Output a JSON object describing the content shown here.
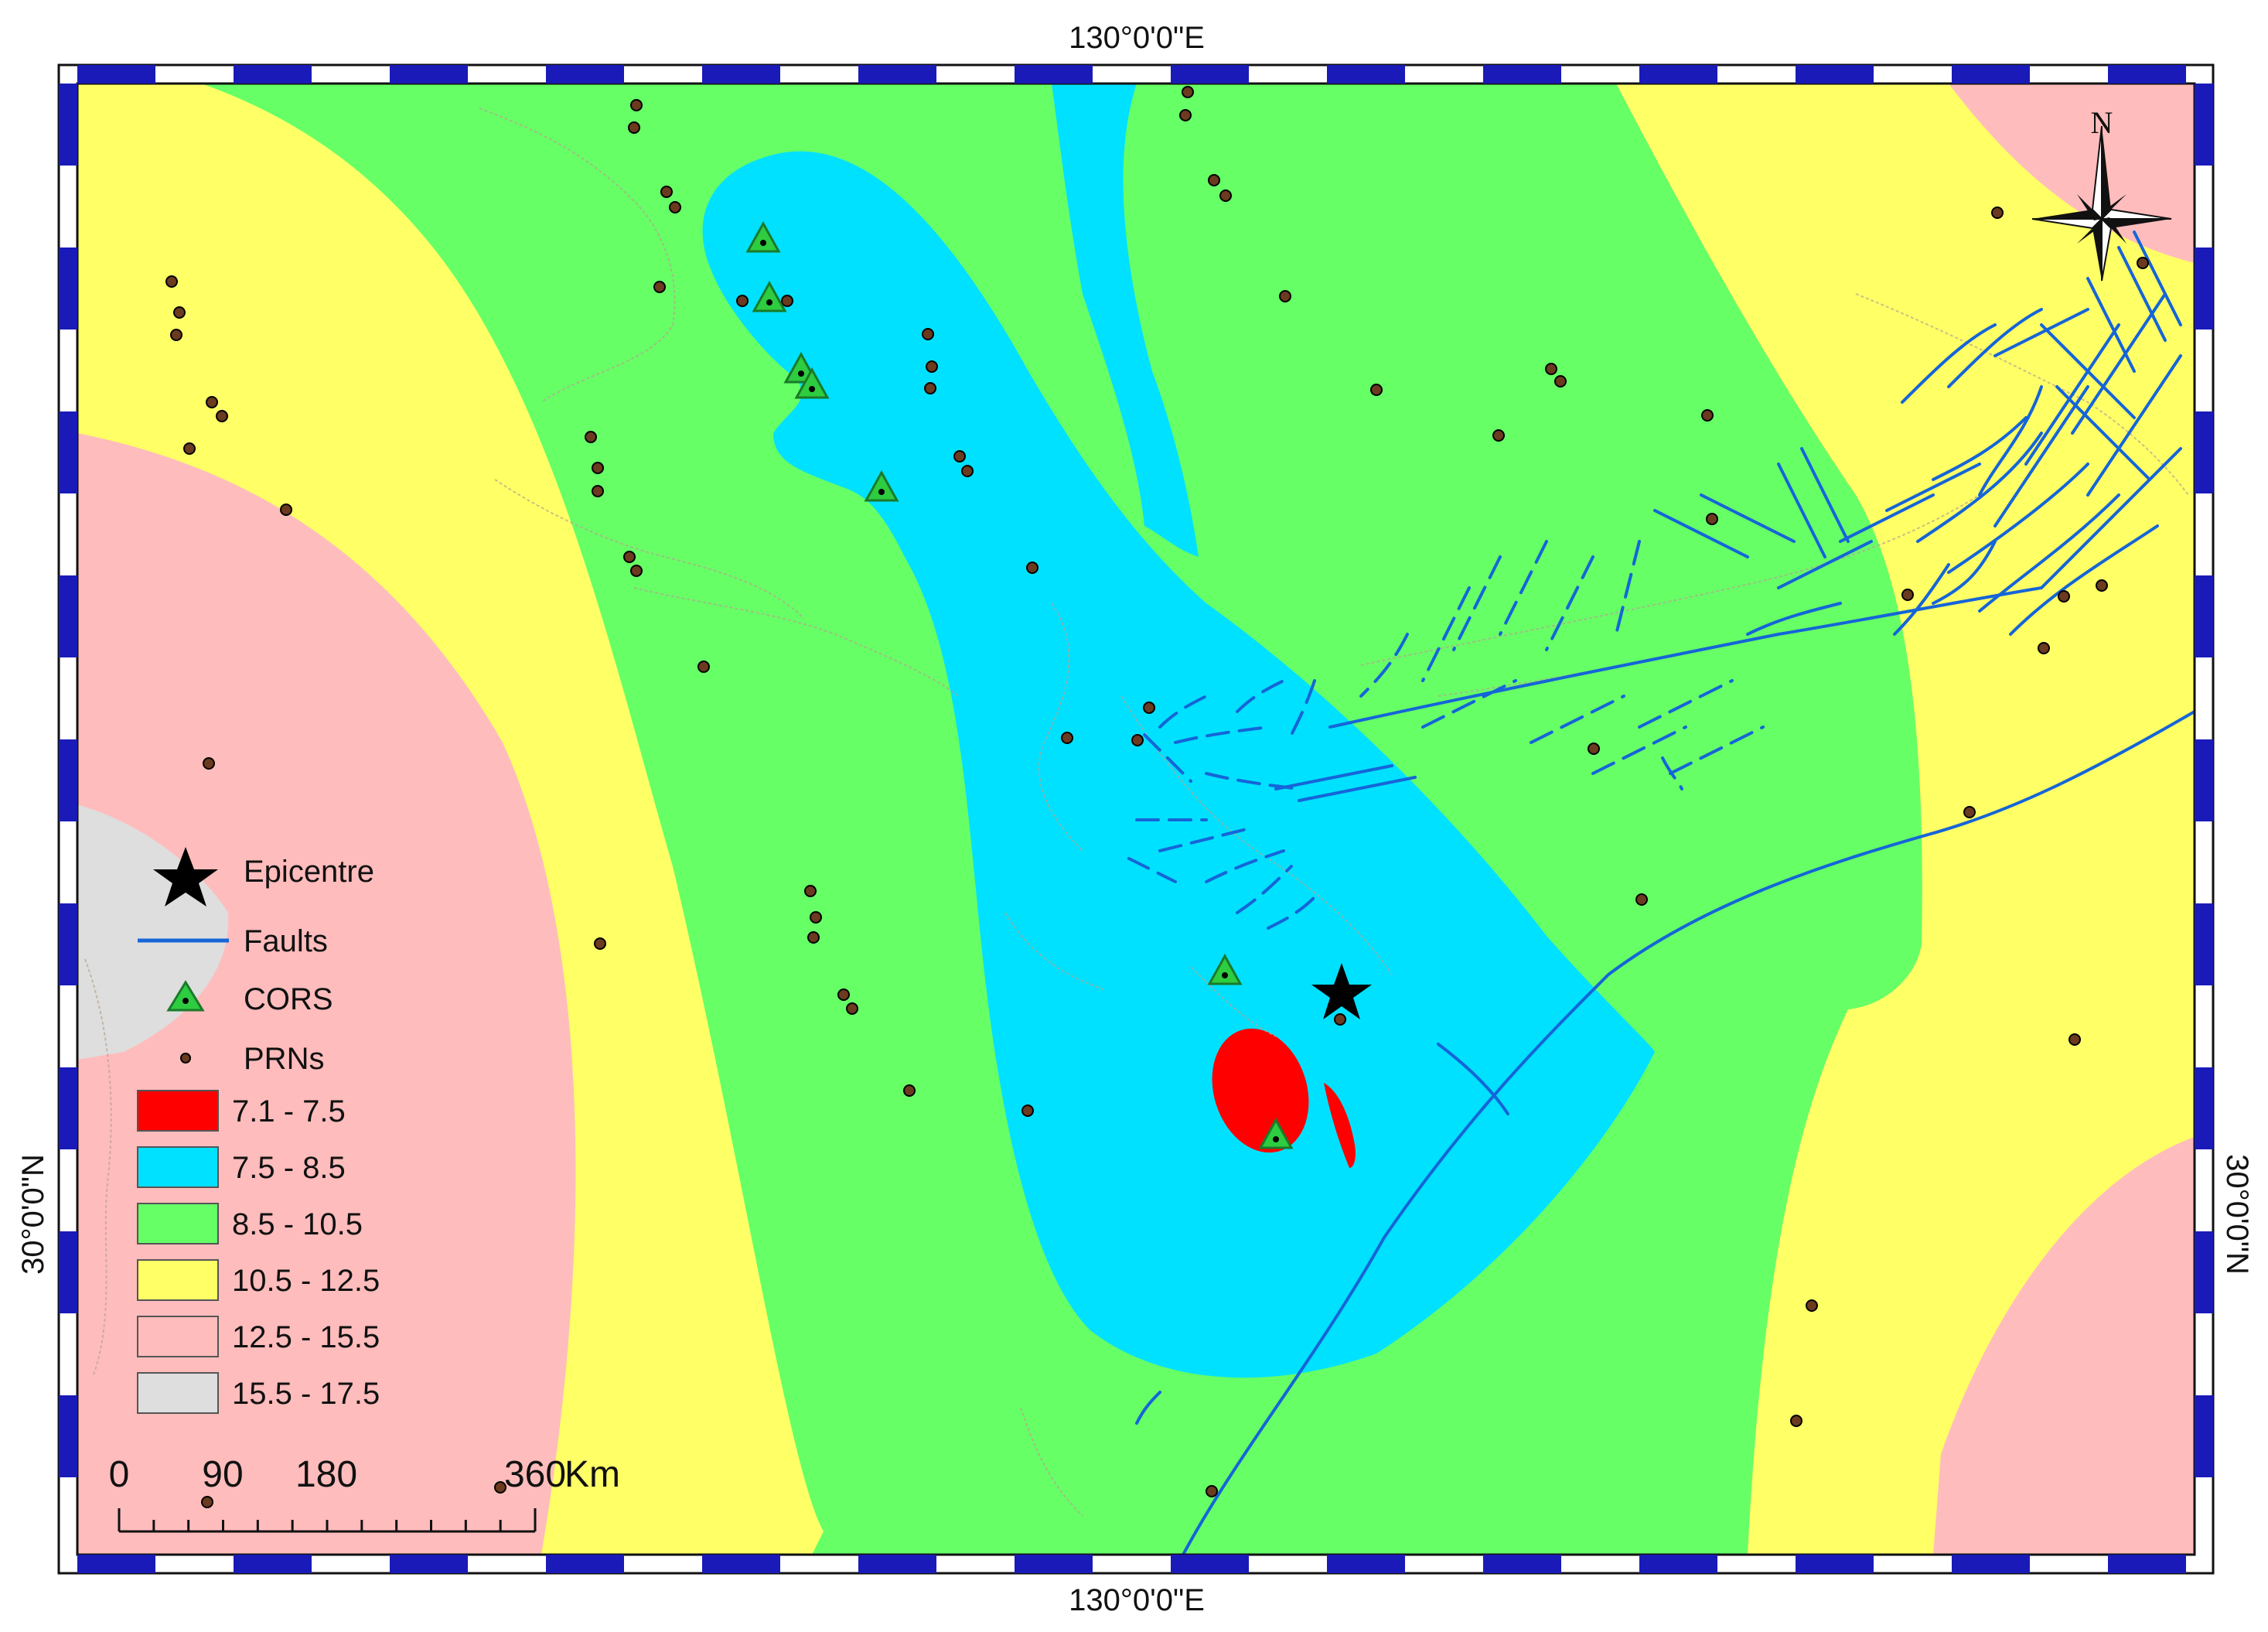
{
  "graticule": {
    "top_label": "130°0'0\"E",
    "bottom_label": "130°0'0\"E",
    "left_label": "30°0'0\"N",
    "right_label": "30°0'0\"N"
  },
  "north_arrow": {
    "label": "N"
  },
  "legend": {
    "symbols": [
      {
        "id": "epicentre",
        "label": "Epicentre",
        "icon": "star-icon"
      },
      {
        "id": "faults",
        "label": "Faults",
        "icon": "line-icon",
        "color": "#1565d8"
      },
      {
        "id": "cors",
        "label": "CORS",
        "icon": "triangle-icon",
        "color": "#2ecc40"
      },
      {
        "id": "prns",
        "label": "PRNs",
        "icon": "dot-icon",
        "color": "#6b3a1f"
      }
    ],
    "classes": [
      {
        "label": "7.1 - 7.5",
        "color": "#ff0000"
      },
      {
        "label": "7.5 - 8.5",
        "color": "#00e1ff"
      },
      {
        "label": "8.5 - 10.5",
        "color": "#66ff66"
      },
      {
        "label": "10.5 - 12.5",
        "color": "#ffff66"
      },
      {
        "label": "12.5 - 15.5",
        "color": "#ffbcbc"
      },
      {
        "label": "15.5 - 17.5",
        "color": "#dedede"
      }
    ]
  },
  "scale_bar": {
    "ticks": [
      "0",
      "90",
      "180",
      "360"
    ],
    "unit": "Km"
  }
}
